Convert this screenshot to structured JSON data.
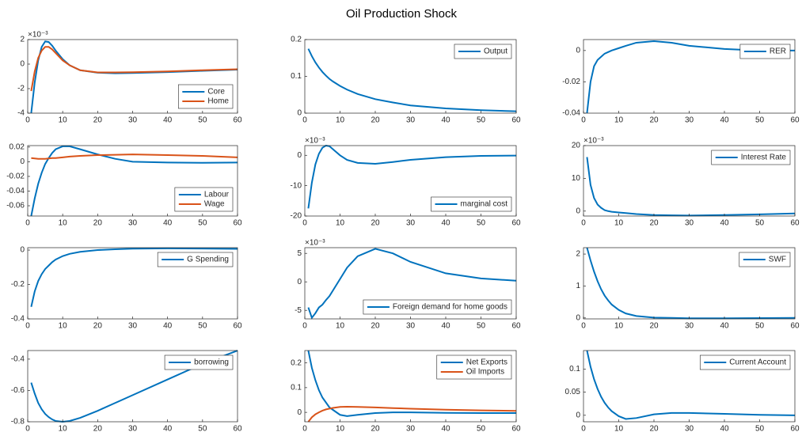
{
  "title": "Oil Production Shock",
  "chart_data": [
    {
      "type": "line",
      "x": [
        1,
        2,
        3,
        4,
        5,
        6,
        7,
        8,
        10,
        12,
        15,
        20,
        25,
        30,
        40,
        50,
        60
      ],
      "xlim": [
        0,
        60
      ],
      "xticks": [
        0,
        10,
        20,
        30,
        40,
        50,
        60
      ],
      "ylim": [
        -4,
        2
      ],
      "yticks": [
        -4,
        -2,
        0,
        2
      ],
      "exponent_label": "×10⁻³",
      "legend": "southeast",
      "series": [
        {
          "name": "Core",
          "color": "#0072BD",
          "values": [
            -4,
            -1.5,
            0.3,
            1.4,
            1.85,
            1.8,
            1.5,
            1.1,
            0.4,
            -0.1,
            -0.5,
            -0.7,
            -0.75,
            -0.73,
            -0.65,
            -0.55,
            -0.45
          ]
        },
        {
          "name": "Home",
          "color": "#D95319",
          "values": [
            -2.2,
            -0.6,
            0.5,
            1.1,
            1.4,
            1.4,
            1.2,
            0.9,
            0.3,
            -0.1,
            -0.5,
            -0.68,
            -0.68,
            -0.66,
            -0.6,
            -0.5,
            -0.42
          ]
        }
      ]
    },
    {
      "type": "line",
      "x": [
        1,
        2,
        3,
        4,
        5,
        6,
        7,
        8,
        10,
        12,
        15,
        20,
        25,
        30,
        40,
        50,
        60
      ],
      "xlim": [
        0,
        60
      ],
      "xticks": [
        0,
        10,
        20,
        30,
        40,
        50,
        60
      ],
      "ylim": [
        0,
        0.2
      ],
      "yticks": [
        0,
        0.1,
        0.2
      ],
      "legend": "northeast",
      "series": [
        {
          "name": "Output",
          "color": "#0072BD",
          "values": [
            0.175,
            0.155,
            0.138,
            0.124,
            0.112,
            0.102,
            0.093,
            0.086,
            0.074,
            0.064,
            0.052,
            0.038,
            0.029,
            0.021,
            0.013,
            0.008,
            0.005
          ]
        }
      ]
    },
    {
      "type": "line",
      "x": [
        1,
        2,
        3,
        4,
        5,
        6,
        7,
        8,
        10,
        12,
        15,
        20,
        25,
        30,
        40,
        50,
        60
      ],
      "xlim": [
        0,
        60
      ],
      "xticks": [
        0,
        10,
        20,
        30,
        40,
        50,
        60
      ],
      "ylim": [
        -0.04,
        0.007
      ],
      "yticks": [
        -0.04,
        -0.02,
        0
      ],
      "legend": "northeast",
      "series": [
        {
          "name": "RER",
          "color": "#0072BD",
          "values": [
            -0.04,
            -0.02,
            -0.01,
            -0.006,
            -0.004,
            -0.002,
            -0.001,
            0,
            0.0015,
            0.003,
            0.005,
            0.006,
            0.005,
            0.003,
            0.001,
            0,
            0
          ]
        }
      ]
    },
    {
      "type": "line",
      "x": [
        1,
        2,
        3,
        4,
        5,
        6,
        7,
        8,
        10,
        12,
        15,
        20,
        25,
        30,
        40,
        50,
        60
      ],
      "xlim": [
        0,
        60
      ],
      "xticks": [
        0,
        10,
        20,
        30,
        40,
        50,
        60
      ],
      "ylim": [
        -0.074,
        0.022
      ],
      "yticks": [
        -0.06,
        -0.04,
        -0.02,
        0,
        0.02
      ],
      "legend": "southeast",
      "series": [
        {
          "name": "Labour",
          "color": "#0072BD",
          "values": [
            -0.074,
            -0.05,
            -0.03,
            -0.015,
            -0.003,
            0.005,
            0.012,
            0.017,
            0.021,
            0.021,
            0.017,
            0.01,
            0.004,
            0,
            -0.001,
            -0.0015,
            -0.001
          ]
        },
        {
          "name": "Wage",
          "color": "#D95319",
          "values": [
            0.005,
            0.0045,
            0.004,
            0.004,
            0.004,
            0.0045,
            0.005,
            0.005,
            0.006,
            0.007,
            0.008,
            0.009,
            0.0095,
            0.01,
            0.009,
            0.008,
            0.006
          ]
        }
      ]
    },
    {
      "type": "line",
      "x": [
        1,
        2,
        3,
        4,
        5,
        6,
        7,
        8,
        10,
        12,
        15,
        20,
        25,
        30,
        40,
        50,
        60
      ],
      "xlim": [
        0,
        60
      ],
      "xticks": [
        0,
        10,
        20,
        30,
        40,
        50,
        60
      ],
      "ylim": [
        -20,
        3.2
      ],
      "yticks": [
        -20,
        -10,
        0
      ],
      "exponent_label": "×10⁻³",
      "legend": "southeast",
      "series": [
        {
          "name": "marginal cost",
          "color": "#0072BD",
          "values": [
            -17.5,
            -9,
            -3,
            0.5,
            2.5,
            3.2,
            3,
            2,
            0,
            -1.5,
            -2.5,
            -2.8,
            -2.2,
            -1.5,
            -0.6,
            -0.2,
            -0.1
          ]
        }
      ]
    },
    {
      "type": "line",
      "x": [
        1,
        2,
        3,
        4,
        5,
        6,
        7,
        8,
        10,
        12,
        15,
        20,
        25,
        30,
        40,
        50,
        60
      ],
      "xlim": [
        0,
        60
      ],
      "xticks": [
        0,
        10,
        20,
        30,
        40,
        50,
        60
      ],
      "ylim": [
        -1.5,
        20
      ],
      "yticks": [
        0,
        10,
        20
      ],
      "exponent_label": "×10⁻³",
      "legend": "northeast",
      "series": [
        {
          "name": "Interest Rate",
          "color": "#0072BD",
          "values": [
            16.5,
            8,
            4,
            2,
            1,
            0.3,
            0,
            -0.2,
            -0.4,
            -0.6,
            -0.9,
            -1.2,
            -1.3,
            -1.35,
            -1.2,
            -1,
            -0.7
          ]
        }
      ]
    },
    {
      "type": "line",
      "x": [
        1,
        2,
        3,
        4,
        5,
        6,
        7,
        8,
        10,
        12,
        15,
        20,
        25,
        30,
        40,
        50,
        60
      ],
      "xlim": [
        0,
        60
      ],
      "xticks": [
        0,
        10,
        20,
        30,
        40,
        50,
        60
      ],
      "ylim": [
        -0.4,
        0.014
      ],
      "yticks": [
        -0.4,
        -0.2,
        0
      ],
      "legend": "northeast",
      "series": [
        {
          "name": "G Spending",
          "color": "#0072BD",
          "values": [
            -0.33,
            -0.24,
            -0.18,
            -0.14,
            -0.11,
            -0.09,
            -0.07,
            -0.055,
            -0.035,
            -0.022,
            -0.01,
            0,
            0.005,
            0.008,
            0.01,
            0.009,
            0.007
          ]
        }
      ]
    },
    {
      "type": "line",
      "x": [
        1,
        2,
        3,
        4,
        5,
        6,
        7,
        8,
        10,
        12,
        15,
        20,
        25,
        30,
        40,
        50,
        60
      ],
      "xlim": [
        0,
        60
      ],
      "xticks": [
        0,
        10,
        20,
        30,
        40,
        50,
        60
      ],
      "ylim": [
        -6.5,
        6
      ],
      "yticks": [
        -5,
        0,
        5
      ],
      "exponent_label": "×10⁻³",
      "legend": "southeast",
      "series": [
        {
          "name": "Foreign demand for home goods",
          "color": "#0072BD",
          "values": [
            -4.5,
            -6.3,
            -5.5,
            -4.5,
            -4,
            -3.2,
            -2.5,
            -1.5,
            0.5,
            2.5,
            4.5,
            5.8,
            5,
            3.5,
            1.5,
            0.6,
            0.2
          ]
        }
      ]
    },
    {
      "type": "line",
      "x": [
        1,
        2,
        3,
        4,
        5,
        6,
        7,
        8,
        10,
        12,
        15,
        20,
        25,
        30,
        40,
        50,
        60
      ],
      "xlim": [
        0,
        60
      ],
      "xticks": [
        0,
        10,
        20,
        30,
        40,
        50,
        60
      ],
      "ylim": [
        -0.03,
        2.2
      ],
      "yticks": [
        0,
        1,
        2
      ],
      "legend": "northeast",
      "series": [
        {
          "name": "SWF",
          "color": "#0072BD",
          "values": [
            2.2,
            1.8,
            1.45,
            1.15,
            0.9,
            0.7,
            0.55,
            0.42,
            0.25,
            0.14,
            0.06,
            0.01,
            0,
            -0.01,
            -0.01,
            -0.005,
            0
          ]
        }
      ]
    },
    {
      "type": "line",
      "x": [
        1,
        2,
        3,
        4,
        5,
        6,
        7,
        8,
        10,
        12,
        15,
        20,
        25,
        30,
        40,
        50,
        60
      ],
      "xlim": [
        0,
        60
      ],
      "xticks": [
        0,
        10,
        20,
        30,
        40,
        50,
        60
      ],
      "ylim": [
        -0.8,
        -0.345
      ],
      "yticks": [
        -0.8,
        -0.6,
        -0.4
      ],
      "legend": "northeast",
      "series": [
        {
          "name": "borrowing",
          "color": "#0072BD",
          "values": [
            -0.55,
            -0.62,
            -0.68,
            -0.72,
            -0.75,
            -0.77,
            -0.785,
            -0.795,
            -0.8,
            -0.795,
            -0.775,
            -0.73,
            -0.68,
            -0.63,
            -0.53,
            -0.43,
            -0.345
          ]
        }
      ]
    },
    {
      "type": "line",
      "x": [
        1,
        2,
        3,
        4,
        5,
        6,
        7,
        8,
        10,
        12,
        15,
        20,
        25,
        30,
        40,
        50,
        60
      ],
      "xlim": [
        0,
        60
      ],
      "xticks": [
        0,
        10,
        20,
        30,
        40,
        50,
        60
      ],
      "ylim": [
        -0.038,
        0.25
      ],
      "yticks": [
        0,
        0.1,
        0.2
      ],
      "legend": "northeast",
      "series": [
        {
          "name": "Net Exports",
          "color": "#0072BD",
          "values": [
            0.25,
            0.18,
            0.13,
            0.09,
            0.06,
            0.04,
            0.02,
            0.01,
            -0.01,
            -0.015,
            -0.01,
            -0.003,
            0,
            0,
            -0.002,
            -0.003,
            -0.003
          ]
        },
        {
          "name": "Oil Imports",
          "color": "#D95319",
          "values": [
            -0.038,
            -0.02,
            -0.008,
            0,
            0.007,
            0.012,
            0.015,
            0.018,
            0.022,
            0.023,
            0.022,
            0.02,
            0.017,
            0.015,
            0.011,
            0.008,
            0.006
          ]
        }
      ]
    },
    {
      "type": "line",
      "x": [
        1,
        2,
        3,
        4,
        5,
        6,
        7,
        8,
        10,
        12,
        15,
        20,
        25,
        30,
        40,
        50,
        60
      ],
      "xlim": [
        0,
        60
      ],
      "xticks": [
        0,
        10,
        20,
        30,
        40,
        50,
        60
      ],
      "ylim": [
        -0.014,
        0.14
      ],
      "yticks": [
        0,
        0.05,
        0.1
      ],
      "legend": "northeast",
      "series": [
        {
          "name": "Current Account",
          "color": "#0072BD",
          "values": [
            0.14,
            0.105,
            0.078,
            0.057,
            0.04,
            0.027,
            0.017,
            0.009,
            -0.002,
            -0.008,
            -0.006,
            0.002,
            0.005,
            0.005,
            0.003,
            0.001,
            0
          ]
        }
      ]
    }
  ]
}
